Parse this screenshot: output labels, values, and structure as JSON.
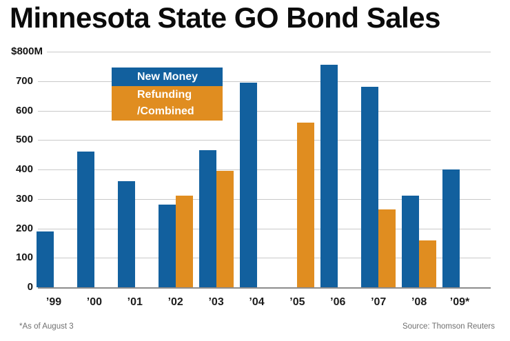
{
  "title": "Minnesota State GO Bond Sales",
  "footnote": "*As of August 3",
  "source": "Source: Thomson Reuters",
  "colors": {
    "new_money_blue": "#12609e",
    "refunding_orange": "#e08d20",
    "gridline_gray": "#c9c9c9",
    "axis_gray": "#8c8c8c"
  },
  "legend": {
    "new_money_label": "New Money",
    "refunding_label": "Refunding\n/Combined"
  },
  "chart_data": {
    "type": "bar",
    "title": "Minnesota State GO Bond Sales",
    "unit": "$ millions",
    "categories": [
      "’99",
      "’00",
      "’01",
      "’02",
      "’03",
      "’04",
      "’05",
      "’06",
      "’07",
      "’08",
      "’09*"
    ],
    "series": [
      {
        "name": "New Money",
        "color": "#12609e",
        "values": [
          190,
          460,
          360,
          280,
          465,
          695,
          null,
          755,
          680,
          310,
          400
        ]
      },
      {
        "name": "Refunding /Combined",
        "color": "#e08d20",
        "values": [
          null,
          null,
          null,
          310,
          395,
          null,
          560,
          null,
          265,
          160,
          null
        ]
      }
    ],
    "ylim": [
      0,
      800
    ],
    "ytick_interval": 100,
    "ytick_labels": [
      "$800M",
      "700",
      "600",
      "500",
      "400",
      "300",
      "200",
      "100",
      "0"
    ],
    "grid": true,
    "legend_position": "inside-top-left",
    "xlabel": "",
    "ylabel": ""
  }
}
